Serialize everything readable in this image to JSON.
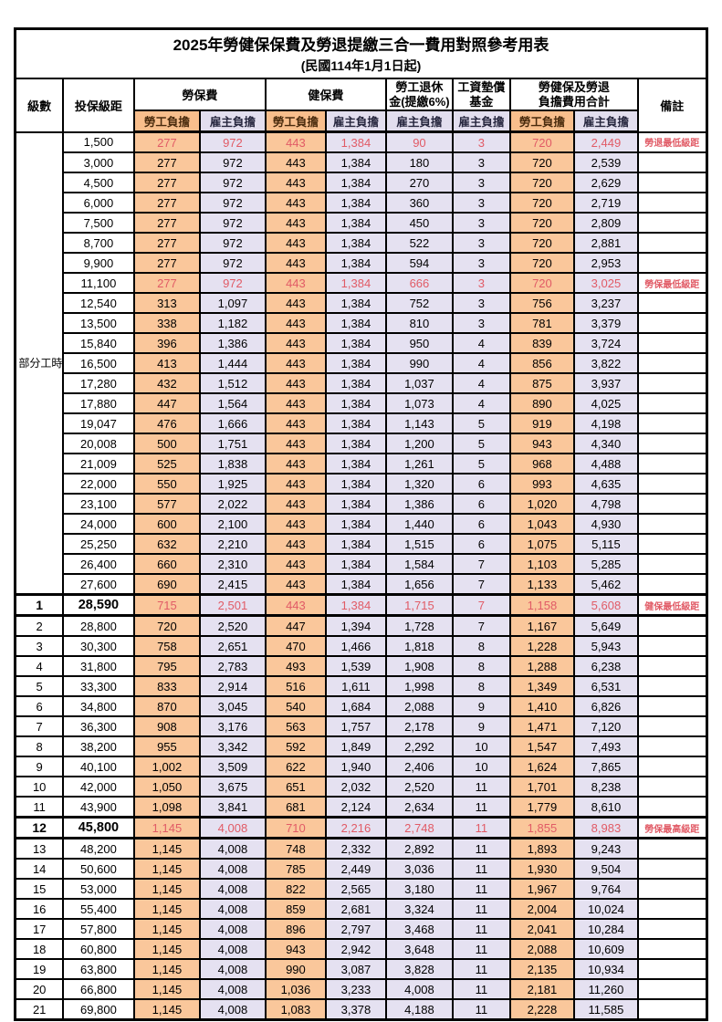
{
  "title": "2025年勞健保保費及勞退提繳三合一費用對照參考用表",
  "subtitle": "(民國114年1月1日起)",
  "header": {
    "grade": "級數",
    "bracket": "投保級距",
    "labor_insurance": "勞保費",
    "health_insurance": "健保費",
    "pension_line1": "勞工退休",
    "pension_line2": "金(提繳6%)",
    "wage_fund_line1": "工資墊償",
    "wage_fund_line2": "基金",
    "total_line1": "勞健保及勞退",
    "total_line2": "負擔費用合計",
    "remark": "備註",
    "employee_burden": "勞工負擔",
    "employer_burden": "雇主負擔"
  },
  "colors": {
    "employee_col_bg": "#FAC79B",
    "employer_col_bg": "#E5E1F1",
    "highlight_text": "#E15B66"
  },
  "table": {
    "group": {
      "label": "部分工時",
      "span": 23
    },
    "rows": [
      {
        "g": "",
        "b": "1,500",
        "c": [
          "277",
          "972",
          "443",
          "1,384",
          "90",
          "3",
          "720",
          "2,449"
        ],
        "r": "勞退最低級距",
        "red": true
      },
      {
        "g": "",
        "b": "3,000",
        "c": [
          "277",
          "972",
          "443",
          "1,384",
          "180",
          "3",
          "720",
          "2,539"
        ],
        "r": ""
      },
      {
        "g": "",
        "b": "4,500",
        "c": [
          "277",
          "972",
          "443",
          "1,384",
          "270",
          "3",
          "720",
          "2,629"
        ],
        "r": ""
      },
      {
        "g": "",
        "b": "6,000",
        "c": [
          "277",
          "972",
          "443",
          "1,384",
          "360",
          "3",
          "720",
          "2,719"
        ],
        "r": ""
      },
      {
        "g": "",
        "b": "7,500",
        "c": [
          "277",
          "972",
          "443",
          "1,384",
          "450",
          "3",
          "720",
          "2,809"
        ],
        "r": ""
      },
      {
        "g": "",
        "b": "8,700",
        "c": [
          "277",
          "972",
          "443",
          "1,384",
          "522",
          "3",
          "720",
          "2,881"
        ],
        "r": ""
      },
      {
        "g": "",
        "b": "9,900",
        "c": [
          "277",
          "972",
          "443",
          "1,384",
          "594",
          "3",
          "720",
          "2,953"
        ],
        "r": ""
      },
      {
        "g": "",
        "b": "11,100",
        "c": [
          "277",
          "972",
          "443",
          "1,384",
          "666",
          "3",
          "720",
          "3,025"
        ],
        "r": "勞保最低級距",
        "red": true
      },
      {
        "g": "",
        "b": "12,540",
        "c": [
          "313",
          "1,097",
          "443",
          "1,384",
          "752",
          "3",
          "756",
          "3,237"
        ],
        "r": ""
      },
      {
        "g": "",
        "b": "13,500",
        "c": [
          "338",
          "1,182",
          "443",
          "1,384",
          "810",
          "3",
          "781",
          "3,379"
        ],
        "r": ""
      },
      {
        "g": "",
        "b": "15,840",
        "c": [
          "396",
          "1,386",
          "443",
          "1,384",
          "950",
          "4",
          "839",
          "3,724"
        ],
        "r": ""
      },
      {
        "g": "",
        "b": "16,500",
        "c": [
          "413",
          "1,444",
          "443",
          "1,384",
          "990",
          "4",
          "856",
          "3,822"
        ],
        "r": ""
      },
      {
        "g": "",
        "b": "17,280",
        "c": [
          "432",
          "1,512",
          "443",
          "1,384",
          "1,037",
          "4",
          "875",
          "3,937"
        ],
        "r": ""
      },
      {
        "g": "",
        "b": "17,880",
        "c": [
          "447",
          "1,564",
          "443",
          "1,384",
          "1,073",
          "4",
          "890",
          "4,025"
        ],
        "r": ""
      },
      {
        "g": "",
        "b": "19,047",
        "c": [
          "476",
          "1,666",
          "443",
          "1,384",
          "1,143",
          "5",
          "919",
          "4,198"
        ],
        "r": ""
      },
      {
        "g": "",
        "b": "20,008",
        "c": [
          "500",
          "1,751",
          "443",
          "1,384",
          "1,200",
          "5",
          "943",
          "4,340"
        ],
        "r": ""
      },
      {
        "g": "",
        "b": "21,009",
        "c": [
          "525",
          "1,838",
          "443",
          "1,384",
          "1,261",
          "5",
          "968",
          "4,488"
        ],
        "r": ""
      },
      {
        "g": "",
        "b": "22,000",
        "c": [
          "550",
          "1,925",
          "443",
          "1,384",
          "1,320",
          "6",
          "993",
          "4,635"
        ],
        "r": ""
      },
      {
        "g": "",
        "b": "23,100",
        "c": [
          "577",
          "2,022",
          "443",
          "1,384",
          "1,386",
          "6",
          "1,020",
          "4,798"
        ],
        "r": ""
      },
      {
        "g": "",
        "b": "24,000",
        "c": [
          "600",
          "2,100",
          "443",
          "1,384",
          "1,440",
          "6",
          "1,043",
          "4,930"
        ],
        "r": ""
      },
      {
        "g": "",
        "b": "25,250",
        "c": [
          "632",
          "2,210",
          "443",
          "1,384",
          "1,515",
          "6",
          "1,075",
          "5,115"
        ],
        "r": ""
      },
      {
        "g": "",
        "b": "26,400",
        "c": [
          "660",
          "2,310",
          "443",
          "1,384",
          "1,584",
          "7",
          "1,103",
          "5,285"
        ],
        "r": ""
      },
      {
        "g": "",
        "b": "27,600",
        "c": [
          "690",
          "2,415",
          "443",
          "1,384",
          "1,656",
          "7",
          "1,133",
          "5,462"
        ],
        "r": "",
        "tb": true
      },
      {
        "g": "1",
        "b": "28,590",
        "c": [
          "715",
          "2,501",
          "443",
          "1,384",
          "1,715",
          "7",
          "1,158",
          "5,608"
        ],
        "r": "健保最低級距",
        "red": true,
        "bold": true,
        "tt": true,
        "tb": true
      },
      {
        "g": "2",
        "b": "28,800",
        "c": [
          "720",
          "2,520",
          "447",
          "1,394",
          "1,728",
          "7",
          "1,167",
          "5,649"
        ],
        "r": ""
      },
      {
        "g": "3",
        "b": "30,300",
        "c": [
          "758",
          "2,651",
          "470",
          "1,466",
          "1,818",
          "8",
          "1,228",
          "5,943"
        ],
        "r": ""
      },
      {
        "g": "4",
        "b": "31,800",
        "c": [
          "795",
          "2,783",
          "493",
          "1,539",
          "1,908",
          "8",
          "1,288",
          "6,238"
        ],
        "r": ""
      },
      {
        "g": "5",
        "b": "33,300",
        "c": [
          "833",
          "2,914",
          "516",
          "1,611",
          "1,998",
          "8",
          "1,349",
          "6,531"
        ],
        "r": ""
      },
      {
        "g": "6",
        "b": "34,800",
        "c": [
          "870",
          "3,045",
          "540",
          "1,684",
          "2,088",
          "9",
          "1,410",
          "6,826"
        ],
        "r": ""
      },
      {
        "g": "7",
        "b": "36,300",
        "c": [
          "908",
          "3,176",
          "563",
          "1,757",
          "2,178",
          "9",
          "1,471",
          "7,120"
        ],
        "r": ""
      },
      {
        "g": "8",
        "b": "38,200",
        "c": [
          "955",
          "3,342",
          "592",
          "1,849",
          "2,292",
          "10",
          "1,547",
          "7,493"
        ],
        "r": ""
      },
      {
        "g": "9",
        "b": "40,100",
        "c": [
          "1,002",
          "3,509",
          "622",
          "1,940",
          "2,406",
          "10",
          "1,624",
          "7,865"
        ],
        "r": ""
      },
      {
        "g": "10",
        "b": "42,000",
        "c": [
          "1,050",
          "3,675",
          "651",
          "2,032",
          "2,520",
          "11",
          "1,701",
          "8,238"
        ],
        "r": ""
      },
      {
        "g": "11",
        "b": "43,900",
        "c": [
          "1,098",
          "3,841",
          "681",
          "2,124",
          "2,634",
          "11",
          "1,779",
          "8,610"
        ],
        "r": "",
        "tb": true
      },
      {
        "g": "12",
        "b": "45,800",
        "c": [
          "1,145",
          "4,008",
          "710",
          "2,216",
          "2,748",
          "11",
          "1,855",
          "8,983"
        ],
        "r": "勞保最高級距",
        "red": true,
        "bold": true,
        "tt": true,
        "tb": true
      },
      {
        "g": "13",
        "b": "48,200",
        "c": [
          "1,145",
          "4,008",
          "748",
          "2,332",
          "2,892",
          "11",
          "1,893",
          "9,243"
        ],
        "r": ""
      },
      {
        "g": "14",
        "b": "50,600",
        "c": [
          "1,145",
          "4,008",
          "785",
          "2,449",
          "3,036",
          "11",
          "1,930",
          "9,504"
        ],
        "r": ""
      },
      {
        "g": "15",
        "b": "53,000",
        "c": [
          "1,145",
          "4,008",
          "822",
          "2,565",
          "3,180",
          "11",
          "1,967",
          "9,764"
        ],
        "r": ""
      },
      {
        "g": "16",
        "b": "55,400",
        "c": [
          "1,145",
          "4,008",
          "859",
          "2,681",
          "3,324",
          "11",
          "2,004",
          "10,024"
        ],
        "r": ""
      },
      {
        "g": "17",
        "b": "57,800",
        "c": [
          "1,145",
          "4,008",
          "896",
          "2,797",
          "3,468",
          "11",
          "2,041",
          "10,284"
        ],
        "r": ""
      },
      {
        "g": "18",
        "b": "60,800",
        "c": [
          "1,145",
          "4,008",
          "943",
          "2,942",
          "3,648",
          "11",
          "2,088",
          "10,609"
        ],
        "r": ""
      },
      {
        "g": "19",
        "b": "63,800",
        "c": [
          "1,145",
          "4,008",
          "990",
          "3,087",
          "3,828",
          "11",
          "2,135",
          "10,934"
        ],
        "r": ""
      },
      {
        "g": "20",
        "b": "66,800",
        "c": [
          "1,036",
          "3,233",
          "4,008",
          "11",
          "2,181",
          "11,260"
        ],
        "r": "",
        "li": [
          "1,145",
          "4,008"
        ]
      },
      {
        "g": "21",
        "b": "69,800",
        "c": [
          "1,145",
          "4,008",
          "1,083",
          "3,378",
          "4,188",
          "11",
          "2,228",
          "11,585"
        ],
        "r": ""
      }
    ]
  }
}
